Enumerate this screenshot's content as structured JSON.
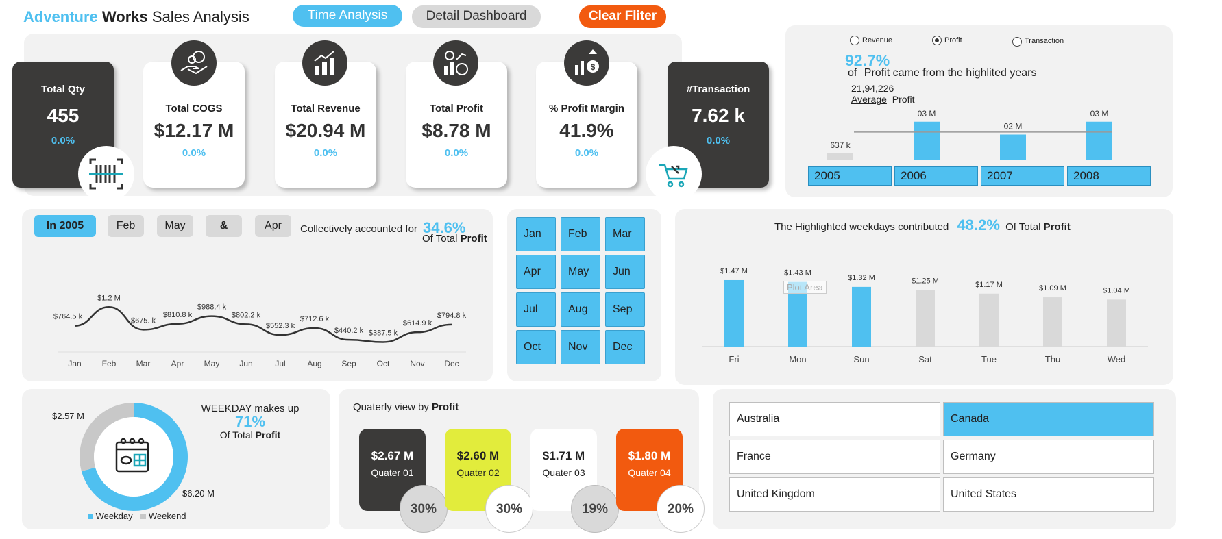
{
  "header": {
    "title_part1": "Adventure",
    "title_part2": "Works",
    "title_part3": "Sales Analysis",
    "time_analysis_label": "Time Analysis",
    "detail_dashboard_label": "Detail Dashboard",
    "clear_filter_label": "Clear Fliter"
  },
  "kpis": {
    "qty": {
      "title": "Total Qty",
      "value": "455",
      "pct": "0.0%"
    },
    "cogs": {
      "title": "Total COGS",
      "value": "$12.17 M",
      "pct": "0.0%"
    },
    "revenue": {
      "title": "Total Revenue",
      "value": "$20.94 M",
      "pct": "0.0%"
    },
    "profit": {
      "title": "Total Profit",
      "value": "$8.78 M",
      "pct": "0.0%"
    },
    "margin": {
      "title": "% Profit Margin",
      "value": "41.9%",
      "pct": "0.0%"
    },
    "transaction": {
      "title": "#Transaction",
      "value": "7.62 k",
      "pct": "0.0%"
    }
  },
  "year_panel": {
    "radio_revenue": "Revenue",
    "radio_profit": "Profit",
    "radio_transaction": "Transaction",
    "selected": "Profit",
    "big_pct": "92.7%",
    "of_text": "of",
    "caption": "Profit came from the highlited years",
    "avg_value": "21,94,226",
    "avg_label": "Average",
    "avg_metric": "Profit",
    "years": [
      "2005",
      "2006",
      "2007",
      "2008"
    ]
  },
  "month_panel": {
    "pill_year": "In 2005",
    "pill_1": "Feb",
    "pill_2": "May",
    "pill_3": "&",
    "pill_4": "Apr",
    "collective_text": "Collectively accounted for",
    "collective_pct": "34.6%",
    "of_total_text": "Of Total",
    "of_total_metric": "Profit"
  },
  "month_slicer": [
    "Jan",
    "Feb",
    "Mar",
    "Apr",
    "May",
    "Jun",
    "Jul",
    "Aug",
    "Sep",
    "Oct",
    "Nov",
    "Dec"
  ],
  "weekday_panel": {
    "text_before": "The Highlighted weekdays contributed",
    "pct": "48.2%",
    "text_after": "Of Total",
    "metric": "Profit",
    "plot_area_tooltip": "Plot Area"
  },
  "donut_panel": {
    "line1": "WEEKDAY makes up",
    "pct": "71%",
    "line3": "Of Total",
    "metric": "Profit",
    "weekend_label": "$2.57 M",
    "weekday_label": "$6.20 M",
    "legend_weekday": "Weekday",
    "legend_weekend": "Weekend"
  },
  "quarter_panel": {
    "title_text": "Quaterly view by",
    "title_metric": "Profit",
    "quarters": [
      {
        "value": "$2.67 M",
        "label": "Quater 01",
        "pct": "30%"
      },
      {
        "value": "$2.60 M",
        "label": "Quater 02",
        "pct": "30%"
      },
      {
        "value": "$1.71 M",
        "label": "Quater 03",
        "pct": "19%"
      },
      {
        "value": "$1.80 M",
        "label": "Quater 04",
        "pct": "20%"
      }
    ]
  },
  "countries": [
    "Australia",
    "Canada",
    "France",
    "Germany",
    "United Kingdom",
    "United States"
  ],
  "colors": {
    "accent": "#4fc0f0",
    "dark": "#3b3a39",
    "orange": "#f25a0f",
    "lime": "#e2ec3c",
    "grey_bar": "#d9d9d9"
  },
  "chart_data": [
    {
      "type": "bar",
      "categories": [
        "2005",
        "2006",
        "2007",
        "2008"
      ],
      "values": [
        0.637,
        3.0,
        2.0,
        3.0
      ],
      "labels": [
        "637 k",
        "03 M",
        "02 M",
        "03 M"
      ],
      "highlighted": [
        false,
        true,
        true,
        true
      ],
      "avg_line": 2.194
    },
    {
      "type": "line",
      "categories": [
        "Jan",
        "Feb",
        "Mar",
        "Apr",
        "May",
        "Jun",
        "Jul",
        "Aug",
        "Sep",
        "Oct",
        "Nov",
        "Dec"
      ],
      "values": [
        764.5,
        1200,
        675,
        810.8,
        988.4,
        802.2,
        552.3,
        712.6,
        440.2,
        387.5,
        614.9,
        794.8
      ],
      "labels": [
        "$764.5 k",
        "$1.2 M",
        "$675. k",
        "$810.8 k",
        "$988.4 k",
        "$802.2 k",
        "$552.3 k",
        "$712.6 k",
        "$440.2 k",
        "$387.5 k",
        "$614.9 k",
        "$794.8 k"
      ]
    },
    {
      "type": "bar",
      "categories": [
        "Fri",
        "Mon",
        "Sun",
        "Sat",
        "Tue",
        "Thu",
        "Wed"
      ],
      "values": [
        1.47,
        1.43,
        1.32,
        1.25,
        1.17,
        1.09,
        1.04
      ],
      "labels": [
        "$1.47 M",
        "$1.43 M",
        "$1.32 M",
        "$1.25 M",
        "$1.17 M",
        "$1.09 M",
        "$1.04 M"
      ],
      "highlighted": [
        true,
        true,
        true,
        false,
        false,
        false,
        false
      ]
    },
    {
      "type": "pie",
      "categories": [
        "Weekday",
        "Weekend"
      ],
      "values": [
        6.2,
        2.57
      ]
    }
  ]
}
